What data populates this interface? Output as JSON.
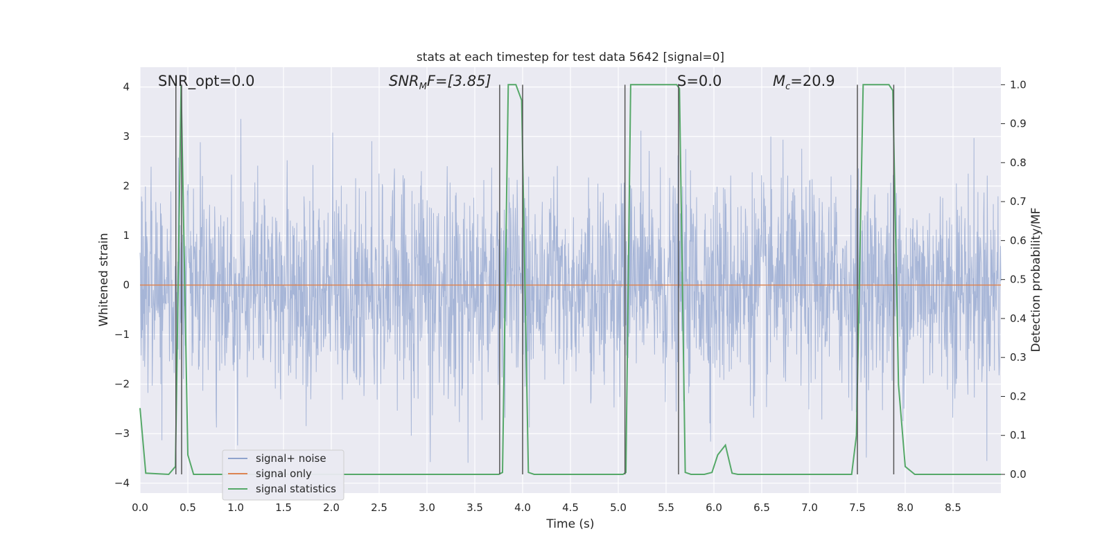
{
  "chart_data": {
    "type": "line",
    "title": "stats at each timestep for test data 5642 [signal=0]",
    "xlabel": "Time (s)",
    "ylabel": "Whitened strain",
    "y2label": "Detection probability/MF",
    "xlim": [
      0.0,
      9.0
    ],
    "ylim": [
      -4.2,
      4.4
    ],
    "y2lim": [
      -0.048,
      1.045
    ],
    "x_ticks": [
      "0.0",
      "0.5",
      "1.0",
      "1.5",
      "2.0",
      "2.5",
      "3.0",
      "3.5",
      "4.0",
      "4.5",
      "5.0",
      "5.5",
      "6.0",
      "6.5",
      "7.0",
      "7.5",
      "8.0",
      "8.5"
    ],
    "y_ticks": [
      "4",
      "3",
      "2",
      "1",
      "0",
      "−1",
      "−2",
      "−3",
      "−4"
    ],
    "y2_ticks": [
      "1.0",
      "0.9",
      "0.8",
      "0.7",
      "0.6",
      "0.5",
      "0.4",
      "0.3",
      "0.2",
      "0.1",
      "0.0"
    ],
    "grid": true,
    "legend_position": "lower-left",
    "annotations": {
      "snr_opt": "SNR_opt=0.0",
      "snr_mf": "SNR",
      "snr_mf_sub": "M",
      "snr_mf_rest": "F=[3.85]",
      "s": "S=0.0",
      "mc": "M",
      "mc_sub": "c",
      "mc_rest": "=20.9"
    },
    "series": [
      {
        "name": "signal+ noise",
        "color": "#8fa3cd",
        "style": "noise",
        "amplitude_envelope": 3.8
      },
      {
        "name": "signal only",
        "color": "#dd8452",
        "values_description": "flat",
        "x": [
          0.0,
          9.0
        ],
        "y": [
          0.0,
          0.0
        ]
      },
      {
        "name": "signal statistics",
        "color": "#55a868",
        "axis": "right",
        "x": [
          0.0,
          0.06,
          0.3,
          0.37,
          0.43,
          0.5,
          0.56,
          3.75,
          3.79,
          3.85,
          3.93,
          3.99,
          4.06,
          4.12,
          5.05,
          5.08,
          5.13,
          5.61,
          5.64,
          5.7,
          5.76,
          5.9,
          5.98,
          6.04,
          6.12,
          6.19,
          6.25,
          7.44,
          7.49,
          7.56,
          7.83,
          7.87,
          7.93,
          8.0,
          8.1,
          9.0
        ],
        "y": [
          0.17,
          0.003,
          0.0,
          0.02,
          1.0,
          0.05,
          0.0,
          0.0,
          0.005,
          1.0,
          1.0,
          0.96,
          0.005,
          0.0,
          0.0,
          0.005,
          1.0,
          1.0,
          0.99,
          0.005,
          0.0,
          0.0,
          0.005,
          0.05,
          0.075,
          0.003,
          0.0,
          0.0,
          0.1,
          1.0,
          1.0,
          0.985,
          0.23,
          0.02,
          0.0,
          0.0
        ]
      }
    ],
    "vertical_lines_x": [
      0.375,
      0.435,
      3.76,
      4.0,
      5.07,
      5.63,
      7.5,
      7.88
    ]
  }
}
